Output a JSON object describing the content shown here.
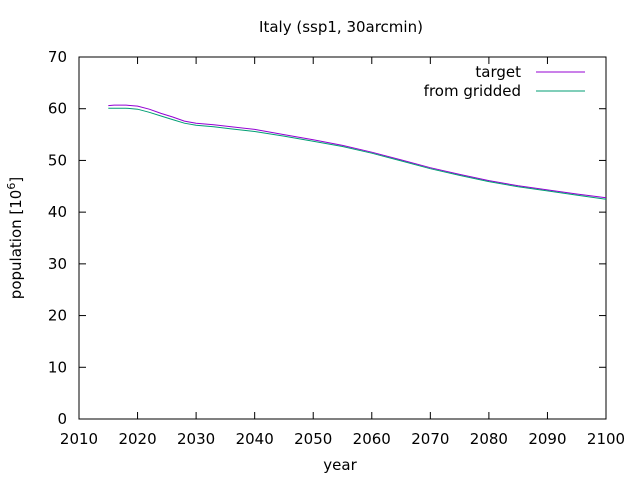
{
  "chart_data": {
    "type": "line",
    "title": "Italy (ssp1, 30arcmin)",
    "xlabel": "year",
    "ylabel_main": "population [10",
    "ylabel_exp": "6",
    "ylabel_close": "]",
    "xlim": [
      2010,
      2100
    ],
    "ylim": [
      0,
      70
    ],
    "xticks": [
      2010,
      2020,
      2030,
      2040,
      2050,
      2060,
      2070,
      2080,
      2090,
      2100
    ],
    "yticks": [
      0,
      10,
      20,
      30,
      40,
      50,
      60,
      70
    ],
    "grid": false,
    "legend_position": "top-right",
    "series": [
      {
        "name": "target",
        "color": "#9400d3",
        "x": [
          2015,
          2016,
          2018,
          2020,
          2022,
          2024,
          2026,
          2028,
          2030,
          2033,
          2036,
          2040,
          2045,
          2050,
          2055,
          2060,
          2065,
          2070,
          2075,
          2080,
          2085,
          2090,
          2095,
          2100
        ],
        "y": [
          60.6,
          60.7,
          60.7,
          60.5,
          59.9,
          59.1,
          58.4,
          57.6,
          57.2,
          56.9,
          56.5,
          56.0,
          55.0,
          54.0,
          52.9,
          51.6,
          50.1,
          48.6,
          47.3,
          46.1,
          45.1,
          44.3,
          43.5,
          42.8
        ]
      },
      {
        "name": "from gridded",
        "color": "#009e73",
        "x": [
          2015,
          2016,
          2018,
          2020,
          2022,
          2024,
          2026,
          2028,
          2030,
          2033,
          2036,
          2040,
          2045,
          2050,
          2055,
          2060,
          2065,
          2070,
          2075,
          2080,
          2085,
          2090,
          2095,
          2100
        ],
        "y": [
          60.1,
          60.1,
          60.1,
          59.9,
          59.3,
          58.6,
          57.9,
          57.2,
          56.8,
          56.5,
          56.1,
          55.6,
          54.7,
          53.7,
          52.7,
          51.4,
          49.9,
          48.4,
          47.1,
          45.9,
          44.9,
          44.1,
          43.3,
          42.5
        ]
      }
    ]
  }
}
